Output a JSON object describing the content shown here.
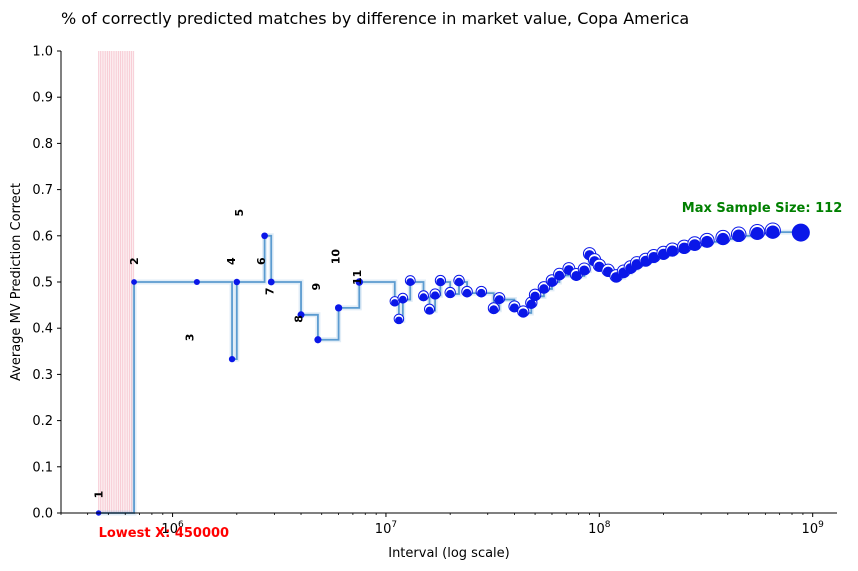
{
  "chart_data": {
    "type": "line",
    "title": "% of correctly predicted matches by difference in market value, Copa America",
    "xlabel": "Interval (log scale)",
    "ylabel": "Average MV Prediction Correct",
    "xscale": "log",
    "xlim": [
      300000,
      1300000000
    ],
    "ylim": [
      0,
      1
    ],
    "grid": false,
    "x_tick_labels": [
      "10^6",
      "10^7",
      "10^8",
      "10^9"
    ],
    "y_tick_labels": [
      "0.0",
      "0.1",
      "0.2",
      "0.3",
      "0.4",
      "0.5",
      "0.6",
      "0.7",
      "0.8",
      "0.9",
      "1.0"
    ],
    "colors": {
      "line": "#5b9bd0",
      "points": "#0a17e8",
      "shade": "#f4b6c2",
      "max_annotation": "#008000",
      "min_annotation": "#ff0000"
    },
    "shaded_region": [
      450000,
      660000
    ],
    "series": [
      {
        "x": [
          450000,
          660000,
          1300000,
          1900000,
          2000000,
          2700000,
          2900000,
          4000000,
          4800000,
          6000000,
          7500000,
          11000000,
          11500000,
          12000000,
          13000000,
          15000000,
          16000000,
          17000000,
          18000000,
          20000000,
          22000000,
          24000000,
          28000000,
          32000000,
          34000000,
          40000000,
          44000000,
          48000000,
          50000000,
          55000000,
          60000000,
          65000000,
          72000000,
          78000000,
          85000000,
          90000000,
          95000000,
          100000000,
          110000000,
          120000000,
          130000000,
          140000000,
          150000000,
          165000000,
          180000000,
          200000000,
          220000000,
          250000000,
          280000000,
          320000000,
          380000000,
          450000000,
          550000000,
          650000000,
          880000000
        ],
        "y": [
          0.0,
          0.5,
          0.5,
          0.333,
          0.5,
          0.6,
          0.5,
          0.429,
          0.375,
          0.444,
          0.5,
          0.455,
          0.417,
          0.462,
          0.5,
          0.467,
          0.438,
          0.471,
          0.5,
          0.474,
          0.5,
          0.476,
          0.476,
          0.44,
          0.462,
          0.444,
          0.433,
          0.452,
          0.469,
          0.485,
          0.5,
          0.514,
          0.526,
          0.513,
          0.525,
          0.558,
          0.545,
          0.533,
          0.522,
          0.51,
          0.52,
          0.529,
          0.538,
          0.545,
          0.553,
          0.56,
          0.567,
          0.573,
          0.58,
          0.587,
          0.593,
          0.6,
          0.605,
          0.608,
          0.607
        ],
        "sample_sizes": [
          1,
          2,
          3,
          4,
          5,
          6,
          7,
          8,
          9,
          10,
          11,
          11,
          12,
          13,
          14,
          15,
          16,
          17,
          18,
          19,
          20,
          21,
          21,
          25,
          26,
          27,
          30,
          31,
          32,
          33,
          34,
          35,
          38,
          39,
          40,
          43,
          44,
          45,
          46,
          49,
          50,
          51,
          52,
          55,
          57,
          59,
          60,
          64,
          69,
          75,
          81,
          86,
          95,
          104,
          112
        ]
      }
    ],
    "point_labels": [
      {
        "text": "1",
        "x": 450000,
        "y": 0.04
      },
      {
        "text": "2",
        "x": 660000,
        "y": 0.545
      },
      {
        "text": "3",
        "x": 1200000,
        "y": 0.38
      },
      {
        "text": "4",
        "x": 1880000,
        "y": 0.545
      },
      {
        "text": "5",
        "x": 2050000,
        "y": 0.65
      },
      {
        "text": "6",
        "x": 2600000,
        "y": 0.545
      },
      {
        "text": "7",
        "x": 2850000,
        "y": 0.48
      },
      {
        "text": "8",
        "x": 3900000,
        "y": 0.42
      },
      {
        "text": "9",
        "x": 4700000,
        "y": 0.49
      },
      {
        "text": "10",
        "x": 5800000,
        "y": 0.555
      },
      {
        "text": "11",
        "x": 7300000,
        "y": 0.51
      }
    ],
    "annotations": {
      "max": {
        "text": "Max Sample Size: 112",
        "x": 880000000,
        "y": 0.66
      },
      "min": {
        "text": "Lowest X: 450000",
        "x": 450000,
        "y": -0.045
      }
    }
  }
}
